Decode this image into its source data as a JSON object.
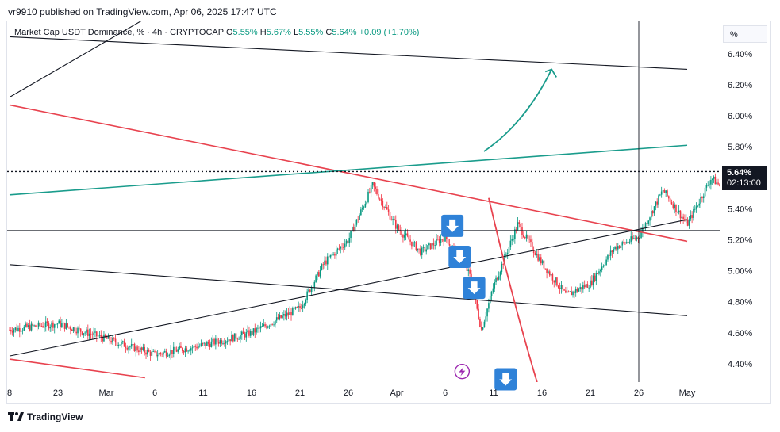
{
  "header": {
    "publisher_line": "vr9910 published on TradingView.com, Apr 06, 2025 17:47 UTC"
  },
  "legend": {
    "symbol": "Market Cap USDT Dominance, % · 4h · CRYPTOCAP",
    "open_label": "O",
    "open": "5.55%",
    "high_label": "H",
    "high": "5.67%",
    "low_label": "L",
    "low": "5.55%",
    "close_label": "C",
    "close": "5.64%",
    "change": "+0.09 (+1.70%)"
  },
  "unit_label": "%",
  "price_tag": {
    "price": "5.64%",
    "countdown": "02:13:00"
  },
  "footer": {
    "brand": "TradingView"
  },
  "colors": {
    "up": "#089981",
    "down": "#f23645",
    "trend_red": "#e8434f",
    "trend_teal": "#1a9c8c",
    "arrow_box": "#2f82d8",
    "lightning": "#9c27b0"
  },
  "icons": {
    "arrow_box": "down-arrow-icon",
    "lightning": "lightning-icon",
    "logo": "tradingview-logo-icon"
  },
  "chart_data": {
    "type": "candlestick",
    "y_ticks": [
      "6.40%",
      "6.20%",
      "6.00%",
      "5.80%",
      "5.40%",
      "5.20%",
      "5.00%",
      "4.80%",
      "4.60%",
      "4.40%"
    ],
    "x_ticks": [
      "8",
      "23",
      "Mar",
      "6",
      "11",
      "16",
      "21",
      "26",
      "Apr",
      "6",
      "11",
      "16",
      "21",
      "26",
      "May"
    ],
    "ylim": [
      4.3,
      6.55
    ],
    "last_price": 5.64,
    "price_path": [
      [
        0,
        4.62
      ],
      [
        2,
        4.66
      ],
      [
        4,
        4.56
      ],
      [
        6,
        4.46
      ],
      [
        8,
        4.52
      ],
      [
        10,
        4.6
      ],
      [
        12,
        4.76
      ],
      [
        13,
        5.05
      ],
      [
        14,
        5.2
      ],
      [
        15,
        5.55
      ],
      [
        16,
        5.28
      ],
      [
        17,
        5.12
      ],
      [
        18,
        5.22
      ],
      [
        19,
        4.98
      ],
      [
        19.5,
        4.62
      ],
      [
        20,
        4.9
      ],
      [
        21,
        5.3
      ],
      [
        22,
        5.05
      ],
      [
        23,
        4.84
      ],
      [
        24,
        4.92
      ],
      [
        25,
        5.15
      ],
      [
        26,
        5.22
      ],
      [
        27,
        5.52
      ],
      [
        28,
        5.3
      ],
      [
        29,
        5.6
      ],
      [
        30,
        5.45
      ],
      [
        31,
        5.35
      ],
      [
        32,
        5.4
      ],
      [
        33,
        5.3
      ],
      [
        34,
        5.3
      ],
      [
        35,
        5.45
      ],
      [
        36,
        5.28
      ],
      [
        37,
        5.2
      ],
      [
        38,
        5.28
      ],
      [
        39,
        5.3
      ],
      [
        40,
        5.22
      ],
      [
        41,
        5.15
      ],
      [
        42,
        5.08
      ],
      [
        43,
        5.06
      ],
      [
        44,
        5.12
      ],
      [
        45,
        5.2
      ],
      [
        46,
        5.4
      ],
      [
        47,
        5.52
      ],
      [
        48,
        5.48
      ],
      [
        49,
        5.45
      ],
      [
        50,
        5.4
      ],
      [
        51,
        5.3
      ],
      [
        51.5,
        5.2
      ],
      [
        52,
        5.45
      ],
      [
        53,
        5.5
      ],
      [
        54,
        5.42
      ],
      [
        55,
        5.5
      ],
      [
        56,
        5.55
      ],
      [
        57,
        5.64
      ]
    ],
    "annotation_lines": [
      {
        "name": "upper-black-line",
        "x": [
          0,
          12.5
        ],
        "y": [
          6.12,
          7.25
        ]
      },
      {
        "name": "top-horizontal-line",
        "x": [
          0,
          28
        ],
        "y": [
          6.51,
          6.3
        ]
      },
      {
        "name": "red-downtrend-line",
        "x": [
          0,
          28
        ],
        "y": [
          6.07,
          5.19
        ]
      },
      {
        "name": "teal-uptrend-line",
        "x": [
          0,
          28
        ],
        "y": [
          5.49,
          5.81
        ]
      },
      {
        "name": "lower-black-support-line",
        "x": [
          0,
          28
        ],
        "y": [
          4.45,
          5.33
        ]
      },
      {
        "name": "mid-black-line",
        "x": [
          0,
          28
        ],
        "y": [
          5.04,
          4.71
        ]
      },
      {
        "name": "lower-red-line",
        "x": [
          0,
          5.6
        ],
        "y": [
          4.43,
          4.31
        ]
      }
    ],
    "horizontal_lines": [
      {
        "name": "price-dotted-line",
        "y": 5.64,
        "style": "dotted"
      },
      {
        "name": "support-horizontal-line",
        "y": 5.26,
        "style": "solid"
      }
    ],
    "vertical_lines": [
      {
        "name": "cursor-vertical-line",
        "x": 26
      }
    ],
    "curved_arrows": [
      {
        "name": "teal-up-arrow",
        "points": [
          [
            19.6,
            5.77
          ],
          [
            21.3,
            5.95
          ],
          [
            22.4,
            6.3
          ]
        ]
      },
      {
        "name": "red-down-curve",
        "points": [
          [
            19.8,
            5.47
          ],
          [
            20.8,
            4.8
          ],
          [
            21.8,
            4.28
          ]
        ]
      }
    ],
    "down_arrow_markers": [
      {
        "x": 18.3,
        "y": 5.29
      },
      {
        "x": 18.6,
        "y": 5.09
      },
      {
        "x": 19.2,
        "y": 4.89
      },
      {
        "x": 20.5,
        "y": 4.3
      }
    ],
    "lightning_marker": {
      "x": 18.7,
      "y": 4.35
    }
  }
}
